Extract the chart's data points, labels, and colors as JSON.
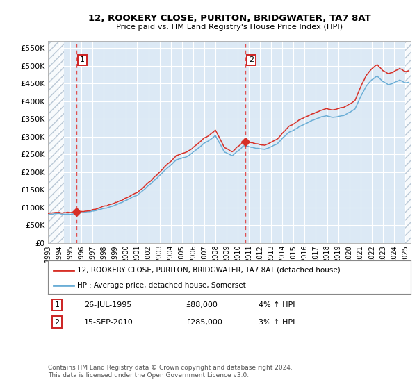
{
  "title": "12, ROOKERY CLOSE, PURITON, BRIDGWATER, TA7 8AT",
  "subtitle": "Price paid vs. HM Land Registry's House Price Index (HPI)",
  "legend_line1": "12, ROOKERY CLOSE, PURITON, BRIDGWATER, TA7 8AT (detached house)",
  "legend_line2": "HPI: Average price, detached house, Somerset",
  "annotation1_date": "26-JUL-1995",
  "annotation1_price": "£88,000",
  "annotation1_hpi": "4% ↑ HPI",
  "annotation2_date": "15-SEP-2010",
  "annotation2_price": "£285,000",
  "annotation2_hpi": "3% ↑ HPI",
  "footer": "Contains HM Land Registry data © Crown copyright and database right 2024.\nThis data is licensed under the Open Government Licence v3.0.",
  "sale1_year": 1995.57,
  "sale1_value": 88000,
  "sale2_year": 2010.71,
  "sale2_value": 285000,
  "hpi_color": "#6baed6",
  "price_color": "#d73027",
  "background_plot": "#dce9f5",
  "background_fig": "#ffffff",
  "hatch_color": "#aabbcc",
  "grid_color": "#ffffff",
  "vline_color": "#e05050",
  "ylim": [
    0,
    570000
  ],
  "ytick_step": 50000,
  "xmin": 1993,
  "xmax": 2025.5,
  "hatch_left_end": 1994.42,
  "hatch_right_start": 2025.0,
  "waypoints_hpi": {
    "1993.0": 80000,
    "1994.0": 82000,
    "1995.0": 83000,
    "1997.0": 95000,
    "1999.0": 110000,
    "2001.0": 140000,
    "2003.0": 195000,
    "2004.5": 240000,
    "2005.5": 250000,
    "2007.0": 285000,
    "2008.0": 305000,
    "2008.8": 260000,
    "2009.5": 250000,
    "2010.5": 275000,
    "2011.5": 268000,
    "2012.5": 265000,
    "2013.5": 280000,
    "2014.5": 310000,
    "2015.5": 330000,
    "2016.5": 345000,
    "2017.5": 358000,
    "2018.0": 360000,
    "2018.5": 355000,
    "2019.5": 358000,
    "2020.5": 375000,
    "2021.0": 410000,
    "2021.5": 440000,
    "2022.0": 460000,
    "2022.5": 470000,
    "2023.0": 455000,
    "2023.5": 445000,
    "2024.0": 450000,
    "2024.5": 455000,
    "2025.0": 450000
  }
}
